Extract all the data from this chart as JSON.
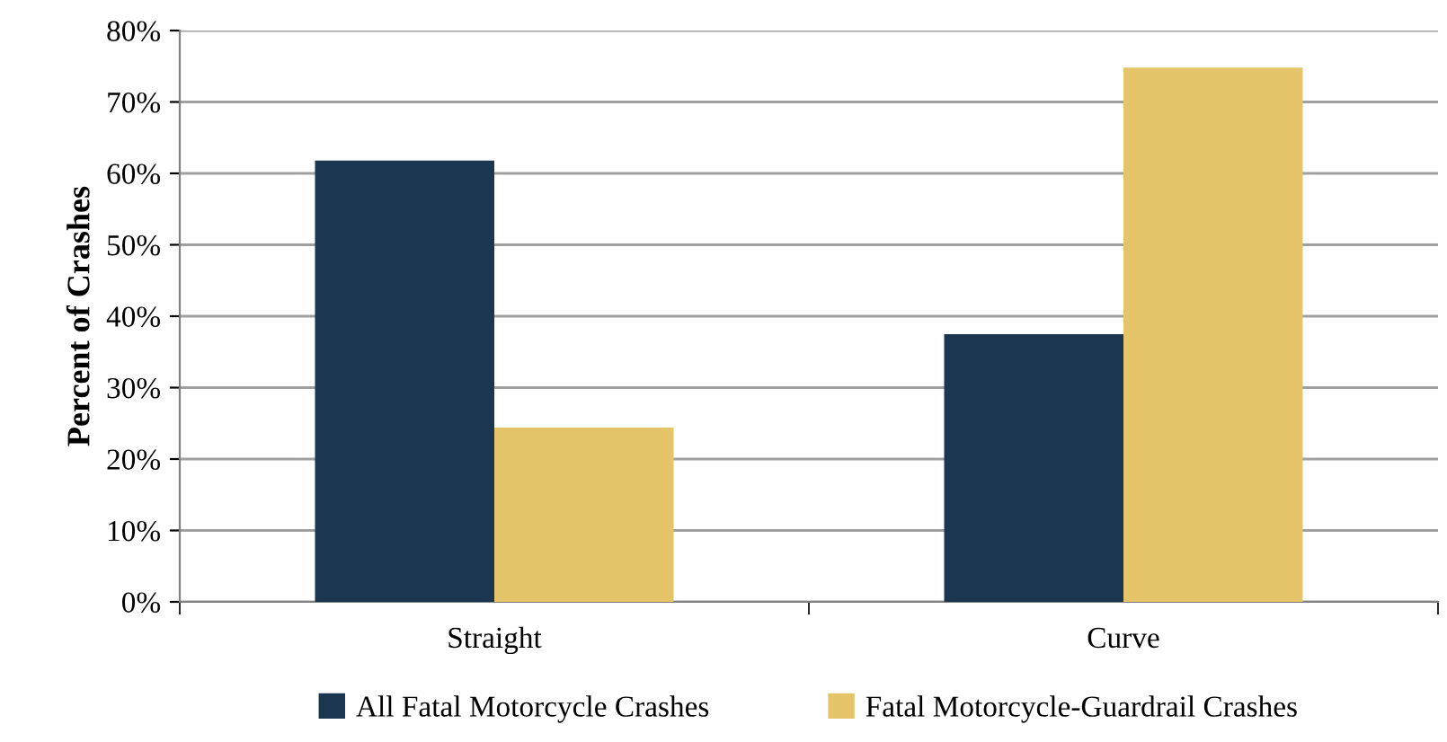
{
  "chart_data": {
    "type": "bar",
    "ylabel": "Percent of Crashes",
    "categories": [
      "Straight",
      "Curve"
    ],
    "series": [
      {
        "name": "All Fatal Motorcycle Crashes",
        "color": "#1b3651",
        "values": [
          61.8,
          37.5
        ]
      },
      {
        "name": "Fatal Motorcycle-Guardrail Crashes",
        "color": "#e5c46a",
        "values": [
          24.4,
          74.8
        ]
      }
    ],
    "ylim": [
      0,
      80
    ],
    "yticks": [
      {
        "value": 0,
        "label": "0%"
      },
      {
        "value": 10,
        "label": "10%"
      },
      {
        "value": 20,
        "label": "20%"
      },
      {
        "value": 30,
        "label": "30%"
      },
      {
        "value": 40,
        "label": "40%"
      },
      {
        "value": 50,
        "label": "50%"
      },
      {
        "value": 60,
        "label": "60%"
      },
      {
        "value": 70,
        "label": "70%"
      },
      {
        "value": 80,
        "label": "80%"
      }
    ],
    "grid": "y",
    "legend": "bottom"
  }
}
